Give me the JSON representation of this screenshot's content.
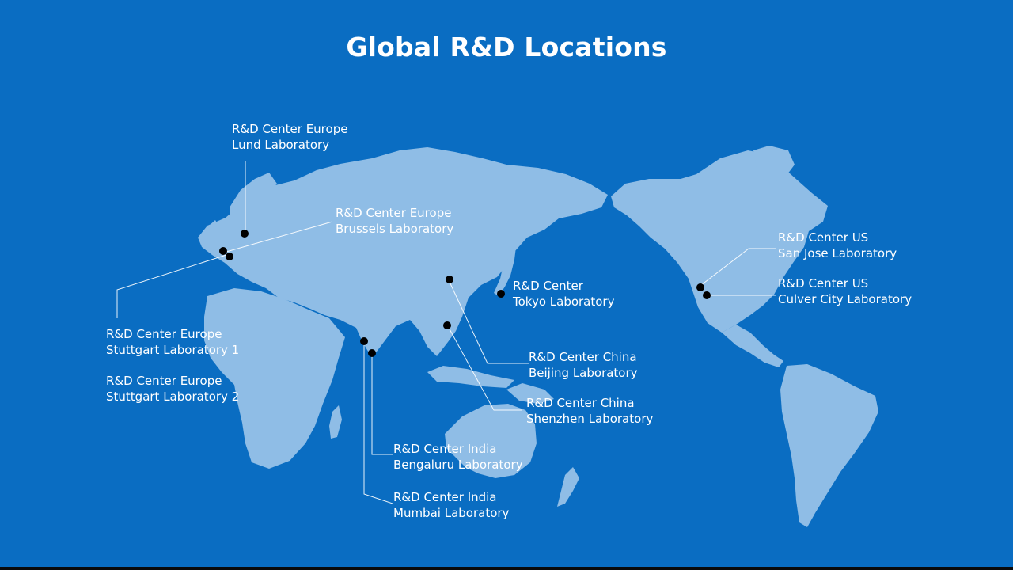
{
  "title": "Global R&D Locations",
  "colors": {
    "background": "#0A6DC2",
    "land": "#8FBDE6",
    "marker": "#000000",
    "text": "#FFFFFF"
  },
  "locations": {
    "lund": {
      "line1": "R&D Center Europe",
      "line2": "Lund Laboratory"
    },
    "brussels": {
      "line1": "R&D Center Europe",
      "line2": "Brussels Laboratory"
    },
    "stuttgart1": {
      "line1": "R&D Center Europe",
      "line2": "Stuttgart Laboratory 1"
    },
    "stuttgart2": {
      "line1": "R&D Center Europe",
      "line2": "Stuttgart Laboratory 2"
    },
    "tokyo": {
      "line1": "R&D Center",
      "line2": "Tokyo Laboratory"
    },
    "beijing": {
      "line1": "R&D Center China",
      "line2": "Beijing Laboratory"
    },
    "shenzhen": {
      "line1": "R&D Center China",
      "line2": "Shenzhen Laboratory"
    },
    "bengaluru": {
      "line1": "R&D Center India",
      "line2": "Bengaluru Laboratory"
    },
    "mumbai": {
      "line1": "R&D Center India",
      "line2": "Mumbai Laboratory"
    },
    "san_jose": {
      "line1": "R&D Center US",
      "line2": "San Jose Laboratory"
    },
    "culver_city": {
      "line1": "R&D Center US",
      "line2": "Culver City Laboratory"
    }
  }
}
